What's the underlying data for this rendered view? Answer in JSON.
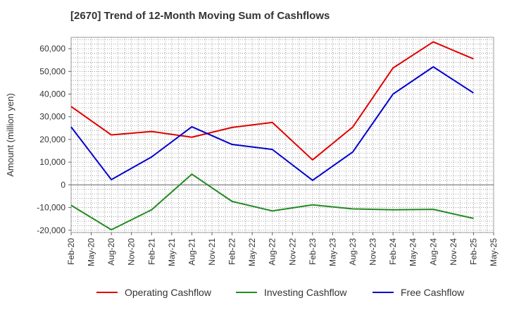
{
  "chart_data": {
    "type": "line",
    "title": "[2670]  Trend of 12-Month Moving Sum of Cashflows",
    "xlabel": "",
    "ylabel": "Amount (million yen)",
    "ylim": [
      -21000,
      65000
    ],
    "yticks": [
      -20000,
      -10000,
      0,
      10000,
      20000,
      30000,
      40000,
      50000,
      60000
    ],
    "ytick_labels": [
      "-20,000",
      "-10,000",
      "0",
      "10,000",
      "20,000",
      "30,000",
      "40,000",
      "50,000",
      "60,000"
    ],
    "x_tick_labels": [
      "Feb-20",
      "May-20",
      "Aug-20",
      "Nov-20",
      "Feb-21",
      "May-21",
      "Aug-21",
      "Nov-21",
      "Feb-22",
      "May-22",
      "Aug-22",
      "Nov-22",
      "Feb-23",
      "May-23",
      "Aug-23",
      "Nov-23",
      "Feb-24",
      "May-24",
      "Aug-24",
      "Nov-24",
      "Feb-25",
      "May-25"
    ],
    "x": [
      "Feb-20",
      "Aug-20",
      "Feb-21",
      "Aug-21",
      "Feb-22",
      "Aug-22",
      "Feb-23",
      "Aug-23",
      "Feb-24",
      "Aug-24",
      "Feb-25"
    ],
    "grid": true,
    "legend_position": "bottom",
    "series": [
      {
        "name": "Operating Cashflow",
        "color": "#e00000",
        "values": [
          34500,
          22000,
          23500,
          21000,
          25300,
          27500,
          11000,
          25500,
          51500,
          63000,
          55500
        ]
      },
      {
        "name": "Investing Cashflow",
        "color": "#228b22",
        "values": [
          -9000,
          -19800,
          -11000,
          4700,
          -7300,
          -11500,
          -8800,
          -10600,
          -11000,
          -10800,
          -14800
        ]
      },
      {
        "name": "Free Cashflow",
        "color": "#0000cc",
        "values": [
          25500,
          2300,
          12300,
          25600,
          17800,
          15600,
          2000,
          14500,
          40000,
          52000,
          40500
        ]
      }
    ]
  }
}
